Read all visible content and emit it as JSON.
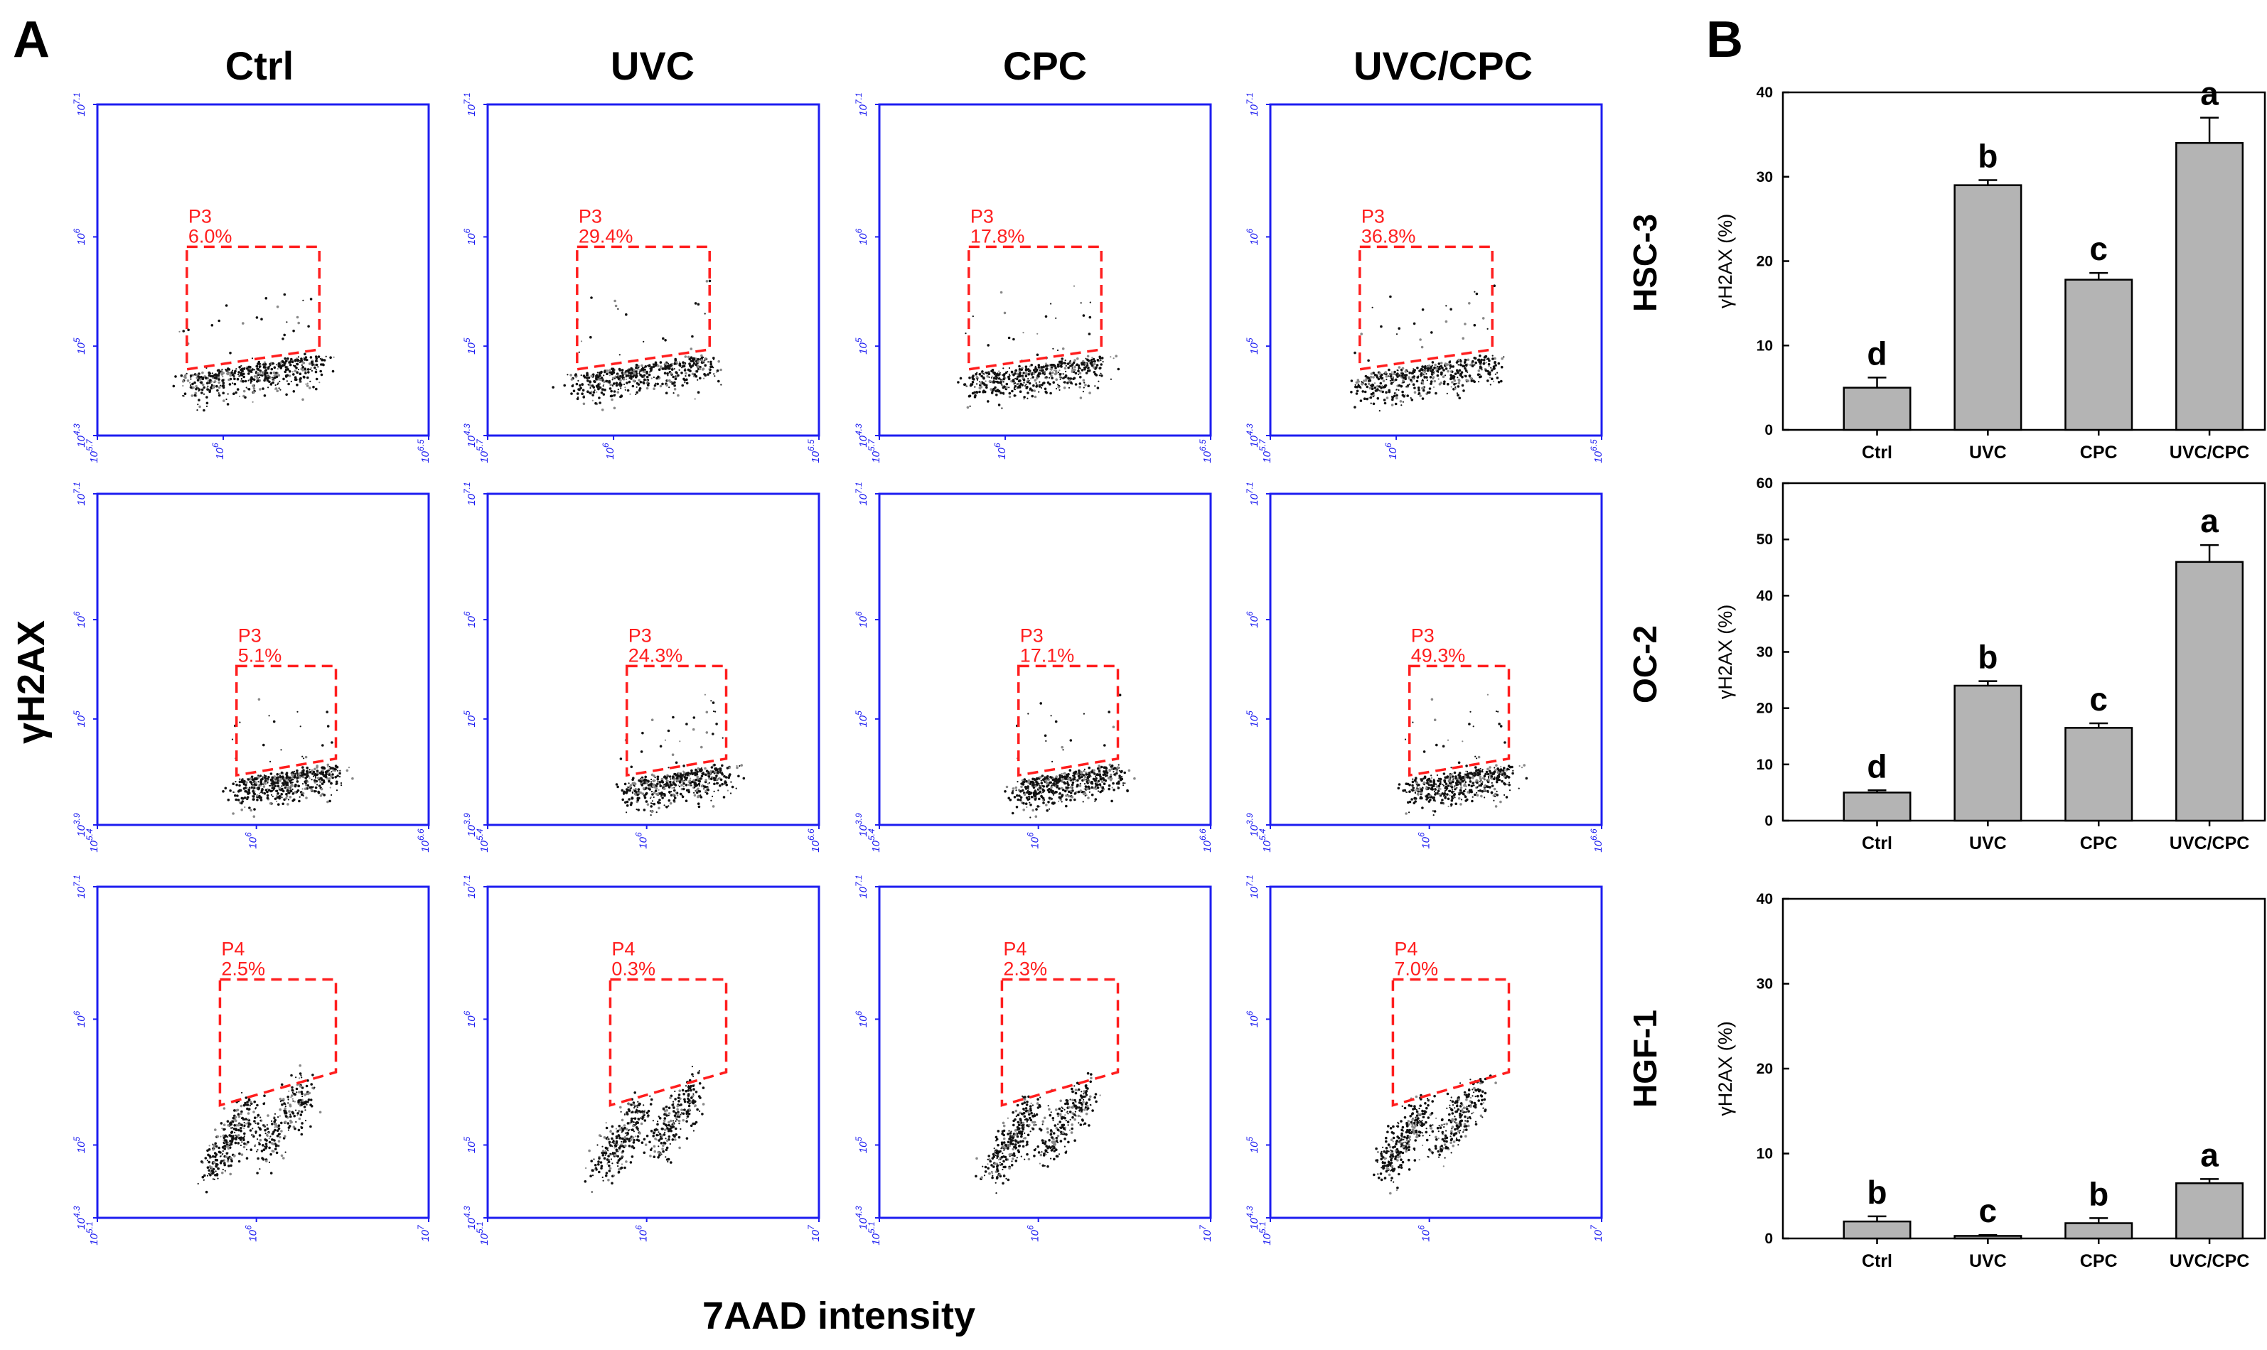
{
  "figure": {
    "panel_a": "A",
    "panel_b": "B",
    "column_titles": [
      "Ctrl",
      "UVC",
      "CPC",
      "UVC/CPC"
    ],
    "row_titles": [
      "HSC-3",
      "OC-2",
      "HGF-1"
    ],
    "y_axis_label": "γH2AX",
    "x_axis_label": "7AAD intensity"
  },
  "flow_rows": [
    {
      "cell_line": "HSC-3",
      "x_ticks": [
        "10^5.7",
        "10^6",
        "10^6.5"
      ],
      "y_ticks": [
        "10^4.3",
        "10^5",
        "10^6",
        "10^7.1"
      ],
      "gate_name": "P3",
      "gates": [
        "6.0%",
        "29.4%",
        "17.8%",
        "36.8%"
      ]
    },
    {
      "cell_line": "OC-2",
      "x_ticks": [
        "10^5.4",
        "10^6",
        "10^6.6"
      ],
      "y_ticks": [
        "10^3.9",
        "10^5",
        "10^6",
        "10^7.1"
      ],
      "gate_name": "P3",
      "gates": [
        "5.1%",
        "24.3%",
        "17.1%",
        "49.3%"
      ]
    },
    {
      "cell_line": "HGF-1",
      "x_ticks": [
        "10^5.1",
        "10^6",
        "10^7"
      ],
      "y_ticks": [
        "10^4.3",
        "10^5",
        "10^6",
        "10^7.1"
      ],
      "gate_name": "P4",
      "gates": [
        "2.5%",
        "0.3%",
        "2.3%",
        "7.0%"
      ]
    }
  ],
  "chart_data": [
    {
      "type": "bar",
      "title": "HSC-3",
      "categories": [
        "Ctrl",
        "UVC",
        "CPC",
        "UVC/CPC"
      ],
      "values": [
        5.0,
        29.0,
        17.8,
        34.0
      ],
      "errors": [
        1.2,
        0.6,
        0.8,
        3.0
      ],
      "significance": [
        "d",
        "b",
        "c",
        "a"
      ],
      "xlabel": "",
      "ylabel": "γH2AX (%)",
      "ylim": [
        0,
        40
      ],
      "yticks": [
        0,
        10,
        20,
        30,
        40
      ]
    },
    {
      "type": "bar",
      "title": "OC-2",
      "categories": [
        "Ctrl",
        "UVC",
        "CPC",
        "UVC/CPC"
      ],
      "values": [
        5.0,
        24.0,
        16.5,
        46.0
      ],
      "errors": [
        0.4,
        0.8,
        0.8,
        3.0
      ],
      "significance": [
        "d",
        "b",
        "c",
        "a"
      ],
      "xlabel": "",
      "ylabel": "γH2AX (%)",
      "ylim": [
        0,
        60
      ],
      "yticks": [
        0,
        10,
        20,
        30,
        40,
        50,
        60
      ]
    },
    {
      "type": "bar",
      "title": "HGF-1",
      "categories": [
        "Ctrl",
        "UVC",
        "CPC",
        "UVC/CPC"
      ],
      "values": [
        2.0,
        0.3,
        1.8,
        6.5
      ],
      "errors": [
        0.6,
        0.1,
        0.6,
        0.5
      ],
      "significance": [
        "b",
        "c",
        "b",
        "a"
      ],
      "xlabel": "",
      "ylabel": "γH2AX (%)",
      "ylim": [
        0,
        40
      ],
      "yticks": [
        0,
        10,
        20,
        30,
        40
      ]
    }
  ]
}
